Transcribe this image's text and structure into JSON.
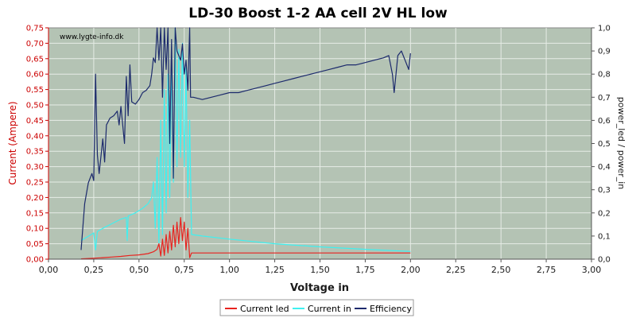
{
  "chart_data": {
    "type": "line",
    "title": "LD-30 Boost 1-2 AA cell 2V HL low",
    "watermark": "www.lygte-info.dk",
    "xlabel": "Voltage in",
    "ylabel_left": "Current (Ampere)",
    "ylabel_right": "power_led / power_in",
    "xlim": [
      0,
      3
    ],
    "ylim_left": [
      0,
      0.75
    ],
    "ylim_right": [
      0,
      1
    ],
    "x_ticks": [
      "0,00",
      "0,25",
      "0,50",
      "0,75",
      "1,00",
      "1,25",
      "1,50",
      "1,75",
      "2,00",
      "2,25",
      "2,50",
      "2,75",
      "3,00"
    ],
    "y_left_ticks": [
      "0,00",
      "0,05",
      "0,10",
      "0,15",
      "0,20",
      "0,25",
      "0,30",
      "0,35",
      "0,40",
      "0,45",
      "0,50",
      "0,55",
      "0,60",
      "0,65",
      "0,70",
      "0,75"
    ],
    "y_right_ticks": [
      "0,0",
      "0,1",
      "0,2",
      "0,3",
      "0,4",
      "0,5",
      "0,6",
      "0,7",
      "0,8",
      "0,9",
      "1,0"
    ],
    "grid": true,
    "legend_position": "bottom",
    "colors": {
      "background": "#b4c3b4",
      "grid": "#e6ece6",
      "current_led": "#e8231f",
      "current_in": "#3ff0f0",
      "efficiency": "#1c2a6c"
    },
    "series": [
      {
        "name": "Current led",
        "axis": "left",
        "color": "#e8231f",
        "points": [
          [
            0.18,
            0.001
          ],
          [
            0.25,
            0.003
          ],
          [
            0.3,
            0.005
          ],
          [
            0.35,
            0.007
          ],
          [
            0.4,
            0.009
          ],
          [
            0.45,
            0.012
          ],
          [
            0.5,
            0.014
          ],
          [
            0.55,
            0.018
          ],
          [
            0.58,
            0.024
          ],
          [
            0.6,
            0.032
          ],
          [
            0.61,
            0.05
          ],
          [
            0.62,
            0.01
          ],
          [
            0.63,
            0.065
          ],
          [
            0.64,
            0.012
          ],
          [
            0.65,
            0.08
          ],
          [
            0.66,
            0.02
          ],
          [
            0.67,
            0.09
          ],
          [
            0.68,
            0.03
          ],
          [
            0.69,
            0.11
          ],
          [
            0.7,
            0.04
          ],
          [
            0.71,
            0.12
          ],
          [
            0.72,
            0.05
          ],
          [
            0.73,
            0.135
          ],
          [
            0.74,
            0.06
          ],
          [
            0.75,
            0.12
          ],
          [
            0.76,
            0.03
          ],
          [
            0.77,
            0.1
          ],
          [
            0.78,
            0.005
          ],
          [
            0.79,
            0.02
          ],
          [
            0.85,
            0.02
          ],
          [
            1.0,
            0.02
          ],
          [
            1.25,
            0.02
          ],
          [
            1.5,
            0.02
          ],
          [
            1.75,
            0.02
          ],
          [
            2.0,
            0.02
          ]
        ]
      },
      {
        "name": "Current in",
        "axis": "left",
        "color": "#3ff0f0",
        "points": [
          [
            0.18,
            0.06
          ],
          [
            0.25,
            0.085
          ],
          [
            0.26,
            0.03
          ],
          [
            0.27,
            0.09
          ],
          [
            0.3,
            0.1
          ],
          [
            0.35,
            0.115
          ],
          [
            0.4,
            0.13
          ],
          [
            0.43,
            0.135
          ],
          [
            0.435,
            0.06
          ],
          [
            0.44,
            0.14
          ],
          [
            0.48,
            0.15
          ],
          [
            0.52,
            0.165
          ],
          [
            0.55,
            0.18
          ],
          [
            0.57,
            0.2
          ],
          [
            0.58,
            0.25
          ],
          [
            0.59,
            0.1
          ],
          [
            0.6,
            0.33
          ],
          [
            0.61,
            0.05
          ],
          [
            0.62,
            0.45
          ],
          [
            0.63,
            0.08
          ],
          [
            0.64,
            0.55
          ],
          [
            0.65,
            0.15
          ],
          [
            0.66,
            0.6
          ],
          [
            0.67,
            0.2
          ],
          [
            0.68,
            0.65
          ],
          [
            0.69,
            0.25
          ],
          [
            0.7,
            0.75
          ],
          [
            0.71,
            0.3
          ],
          [
            0.72,
            0.68
          ],
          [
            0.73,
            0.33
          ],
          [
            0.74,
            0.7
          ],
          [
            0.75,
            0.3
          ],
          [
            0.76,
            0.62
          ],
          [
            0.77,
            0.2
          ],
          [
            0.78,
            0.45
          ],
          [
            0.79,
            0.08
          ],
          [
            0.85,
            0.075
          ],
          [
            1.0,
            0.065
          ],
          [
            1.25,
            0.05
          ],
          [
            1.5,
            0.04
          ],
          [
            1.75,
            0.032
          ],
          [
            2.0,
            0.025
          ]
        ]
      },
      {
        "name": "Efficiency",
        "axis": "right",
        "color": "#1c2a6c",
        "points": [
          [
            0.18,
            0.04
          ],
          [
            0.2,
            0.24
          ],
          [
            0.22,
            0.33
          ],
          [
            0.24,
            0.37
          ],
          [
            0.25,
            0.34
          ],
          [
            0.26,
            0.8
          ],
          [
            0.27,
            0.45
          ],
          [
            0.28,
            0.37
          ],
          [
            0.3,
            0.52
          ],
          [
            0.31,
            0.42
          ],
          [
            0.32,
            0.58
          ],
          [
            0.34,
            0.61
          ],
          [
            0.36,
            0.62
          ],
          [
            0.38,
            0.64
          ],
          [
            0.39,
            0.58
          ],
          [
            0.4,
            0.66
          ],
          [
            0.42,
            0.5
          ],
          [
            0.43,
            0.79
          ],
          [
            0.44,
            0.62
          ],
          [
            0.45,
            0.84
          ],
          [
            0.46,
            0.68
          ],
          [
            0.48,
            0.67
          ],
          [
            0.5,
            0.69
          ],
          [
            0.52,
            0.72
          ],
          [
            0.54,
            0.73
          ],
          [
            0.56,
            0.75
          ],
          [
            0.57,
            0.8
          ],
          [
            0.58,
            0.87
          ],
          [
            0.59,
            0.85
          ],
          [
            0.6,
            1.0
          ],
          [
            0.61,
            0.86
          ],
          [
            0.62,
            1.0
          ],
          [
            0.63,
            0.7
          ],
          [
            0.64,
            1.0
          ],
          [
            0.65,
            0.82
          ],
          [
            0.66,
            1.0
          ],
          [
            0.67,
            0.5
          ],
          [
            0.68,
            0.95
          ],
          [
            0.69,
            0.35
          ],
          [
            0.7,
            1.0
          ],
          [
            0.71,
            0.9
          ],
          [
            0.72,
            0.88
          ],
          [
            0.73,
            0.86
          ],
          [
            0.74,
            0.93
          ],
          [
            0.75,
            0.8
          ],
          [
            0.76,
            0.86
          ],
          [
            0.77,
            0.73
          ],
          [
            0.78,
            1.0
          ],
          [
            0.785,
            0.7
          ],
          [
            0.8,
            0.7
          ],
          [
            0.85,
            0.69
          ],
          [
            0.9,
            0.7
          ],
          [
            0.95,
            0.71
          ],
          [
            1.0,
            0.72
          ],
          [
            1.05,
            0.72
          ],
          [
            1.1,
            0.73
          ],
          [
            1.15,
            0.74
          ],
          [
            1.2,
            0.75
          ],
          [
            1.25,
            0.76
          ],
          [
            1.3,
            0.77
          ],
          [
            1.35,
            0.78
          ],
          [
            1.4,
            0.79
          ],
          [
            1.45,
            0.8
          ],
          [
            1.5,
            0.81
          ],
          [
            1.55,
            0.82
          ],
          [
            1.6,
            0.83
          ],
          [
            1.65,
            0.84
          ],
          [
            1.7,
            0.84
          ],
          [
            1.75,
            0.85
          ],
          [
            1.8,
            0.86
          ],
          [
            1.85,
            0.87
          ],
          [
            1.88,
            0.88
          ],
          [
            1.9,
            0.8
          ],
          [
            1.91,
            0.72
          ],
          [
            1.93,
            0.88
          ],
          [
            1.95,
            0.9
          ],
          [
            1.97,
            0.86
          ],
          [
            1.99,
            0.82
          ],
          [
            2.0,
            0.89
          ]
        ]
      }
    ]
  }
}
